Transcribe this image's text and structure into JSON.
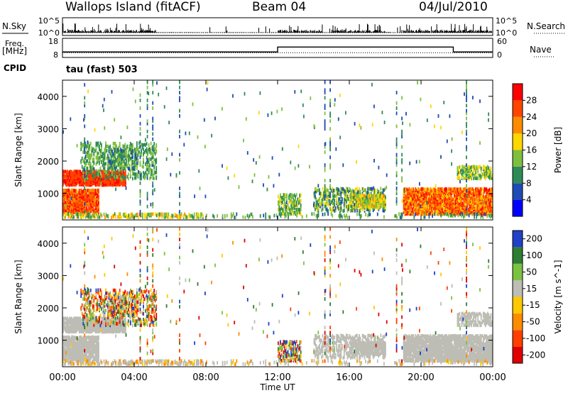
{
  "header": {
    "station": "Wallops Island (fitACF)",
    "beam": "Beam 04",
    "date": "04/Jul/2010"
  },
  "panels_info": {
    "nsky_label": "N.Sky",
    "nsearch_label": "N.Search",
    "freq_label": "Freq.",
    "freq_unit": "[MHz]",
    "nave_label": "Nave",
    "cpid_label": "CPID",
    "cpid_value": "tau (fast) 503",
    "noise_ticks": [
      "10^5",
      "10^0"
    ],
    "freq_ticks": [
      "18",
      "8"
    ],
    "nave_ticks": [
      "60",
      "0"
    ]
  },
  "colors": {
    "power_scale": [
      "#0000ff",
      "#1e4bb4",
      "#2e8b57",
      "#7fbf3f",
      "#ffd700",
      "#ff8c00",
      "#ff4500",
      "#ff0000"
    ],
    "velocity_scale": [
      "#2040c8",
      "#2e7d32",
      "#7cc242",
      "#bdbdb5",
      "#ffc800",
      "#ff8c00",
      "#ff4000",
      "#e00000"
    ],
    "ground_scatter": "#bdbdb5"
  },
  "chart_data": [
    {
      "type": "line",
      "title": "N.Sky / N.Search",
      "ylabel": "N.Sky",
      "y2label": "N.Search",
      "yscale": "log",
      "ylim": [
        1,
        100000
      ],
      "x": [
        "00:00",
        "04:00",
        "08:00",
        "12:00",
        "16:00",
        "20:00",
        "00:00"
      ],
      "series": [
        {
          "name": "N.Sky",
          "description_values": "noisy baseline near 10^0 with spikes up to ~10^4"
        }
      ]
    },
    {
      "type": "line",
      "ylabel": "Freq. [MHz]",
      "y2label": "Nave",
      "ylim": [
        8,
        18
      ],
      "y2lim": [
        0,
        60
      ],
      "x_hours": [
        0,
        12,
        21.8,
        24
      ],
      "series": [
        {
          "name": "Freq.",
          "values": [
            10.5,
            13.5,
            10.5,
            10.5
          ]
        },
        {
          "name": "Nave",
          "values": [
            12,
            12,
            12,
            12
          ]
        }
      ]
    },
    {
      "type": "heatmap",
      "variable": "Power",
      "ylabel": "Slant Range [km]",
      "ylim": [
        180,
        4500
      ],
      "yticks": [
        "1000",
        "2000",
        "3000",
        "4000"
      ],
      "xlim_hours": [
        0,
        24
      ],
      "colorbar": {
        "label": "Power [dB]",
        "ticks": [
          "4",
          "8",
          "12",
          "16",
          "20",
          "24",
          "28"
        ]
      }
    },
    {
      "type": "heatmap",
      "variable": "Velocity",
      "ylabel": "Slant Range [km]",
      "ylim": [
        180,
        4500
      ],
      "yticks": [
        "1000",
        "2000",
        "3000",
        "4000"
      ],
      "xlim_hours": [
        0,
        24
      ],
      "xticks": [
        "00:00",
        "04:00",
        "08:00",
        "12:00",
        "16:00",
        "20:00",
        "00:00"
      ],
      "xlabel": "Time UT",
      "colorbar": {
        "label": "Velocity [m s^-1]",
        "ticks": [
          "200",
          "100",
          "50",
          "15",
          "-15",
          "-50",
          "-100",
          "-200"
        ]
      }
    }
  ]
}
